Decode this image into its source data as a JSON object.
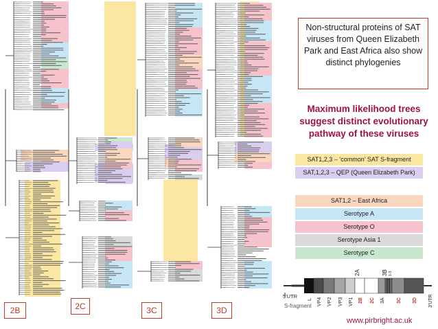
{
  "panels": [
    {
      "label": "2B"
    },
    {
      "label": "2C"
    },
    {
      "label": "3C"
    },
    {
      "label": "3D"
    }
  ],
  "callout_text": "Non-structural proteins of SAT viruses from Queen Elizabeth Park and East Africa also show distinct phylogenies",
  "subtitle": "Maximum likelihood trees suggest distinct evolutionary pathway of these viruses",
  "legend": [
    {
      "label": "SAT1,2,3 – ‘common’ SAT S-fragment",
      "color": "#fbe7a1"
    },
    {
      "label": "SAT,1,2,3 – QEP (Queen Elizabeth Park)",
      "color": "#d9cdf0"
    },
    {
      "label": "SAT1,2 – East Africa",
      "color": "#f9d6bd"
    },
    {
      "label": "Serotype A",
      "color": "#c6e6f5"
    },
    {
      "label": "Serotype O",
      "color": "#f6c2cc"
    },
    {
      "label": "Serotype Asia 1",
      "color": "#d9d9d9"
    },
    {
      "label": "Serotype C",
      "color": "#c9e7cf"
    }
  ],
  "genome": {
    "top_labels": [
      {
        "text": "2A"
      },
      {
        "text": "3B"
      },
      {
        "text": "1-3"
      }
    ],
    "bottom_labels": [
      {
        "text": "5'UTR"
      },
      {
        "text": "L"
      },
      {
        "text": "VP4"
      },
      {
        "text": "VP2"
      },
      {
        "text": "VP3"
      },
      {
        "text": "VP1"
      },
      {
        "text": "2B"
      },
      {
        "text": "2C"
      },
      {
        "text": "3A"
      },
      {
        "text": "3C"
      },
      {
        "text": "3D"
      },
      {
        "text": "3'UTR"
      }
    ],
    "highlighted_labels_color": "#c0392b",
    "s_fragment_label": "S-fragment"
  },
  "website": "www.pirbright.ac.uk"
}
